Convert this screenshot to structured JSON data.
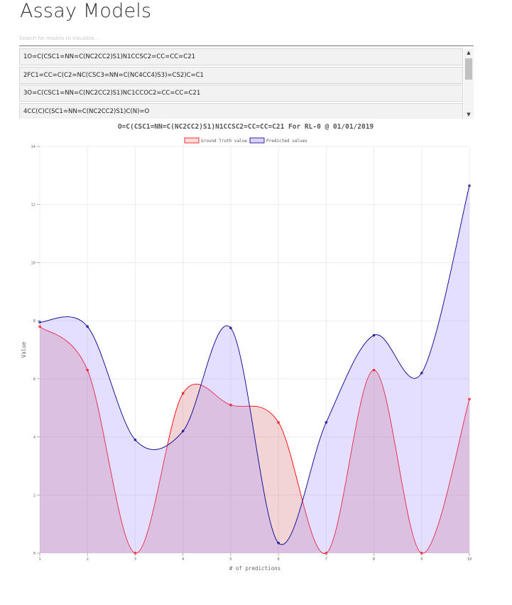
{
  "page": {
    "title": "Assay Models",
    "search_placeholder": "Search for models to visualize..."
  },
  "model_list": {
    "items": [
      {
        "label": "1O=C(CSC1=NN=C(NC2CC2)S1)N1CCSC2=CC=CC=C21"
      },
      {
        "label": "2FC1=CC=C(C2=NC(CSC3=NN=C(NC4CC4)S3)=CS2)C=C1"
      },
      {
        "label": "3O=C(CSC1=NN=C(NC2CC2)S1)NC1CCOC2=CC=CC=C21"
      },
      {
        "label": "4CC(C)C(SC1=NN=C(NC2CC2)S1)C(N)=O"
      }
    ],
    "scroll_up_icon": "▲",
    "scroll_down_icon": "▼"
  },
  "chart_data": {
    "type": "line",
    "title": "O=C(CSC1=NN=C(NC2CC2)S1)N1CCSC2=CC=CC=C21 For RL-0 @ 01/01/2019",
    "xlabel": "# of predictions",
    "ylabel": "Value",
    "xlim": [
      1,
      10
    ],
    "ylim": [
      0,
      14
    ],
    "x_ticks": [
      "1",
      "2",
      "3",
      "4",
      "5",
      "6",
      "7",
      "8",
      "9",
      "10"
    ],
    "y_ticks": [
      "0",
      "2",
      "4",
      "6",
      "8",
      "10",
      "12",
      "14"
    ],
    "grid": true,
    "legend_position": "top",
    "x": [
      1,
      2,
      3,
      4,
      5,
      6,
      7,
      8,
      9,
      10
    ],
    "series": [
      {
        "name": "Ground Truth value",
        "values": [
          7.8,
          6.3,
          0.0,
          5.5,
          5.1,
          4.5,
          0.0,
          6.3,
          0.0,
          5.3
        ],
        "color": "#ff0000",
        "fill": "rgba(210,100,110,0.28)"
      },
      {
        "name": "Predicted values",
        "values": [
          7.95,
          7.8,
          3.9,
          4.2,
          7.75,
          0.35,
          4.5,
          7.5,
          6.2,
          12.65
        ],
        "color": "#00008b",
        "fill": "rgba(160,140,255,0.28)"
      }
    ]
  }
}
